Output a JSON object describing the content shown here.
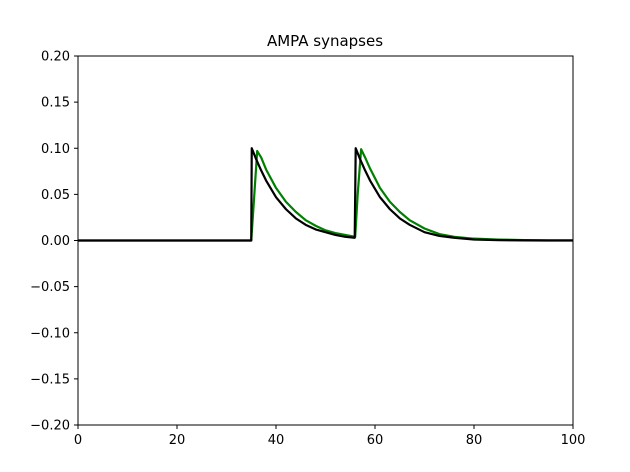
{
  "chart_data": {
    "type": "line",
    "title": "AMPA synapses",
    "xlabel": "",
    "ylabel": "",
    "xlim": [
      0,
      100
    ],
    "ylim": [
      -0.2,
      0.2
    ],
    "xticks": [
      0,
      20,
      40,
      60,
      80,
      100
    ],
    "xtick_labels": [
      "0",
      "20",
      "40",
      "60",
      "80",
      "100"
    ],
    "yticks": [
      -0.2,
      -0.15,
      -0.1,
      -0.05,
      0.0,
      0.05,
      0.1,
      0.15,
      0.2
    ],
    "ytick_labels": [
      "−0.20",
      "−0.15",
      "−0.10",
      "−0.05",
      "0.00",
      "0.05",
      "0.10",
      "0.15",
      "0.20"
    ],
    "grid": false,
    "legend": "none",
    "series": [
      {
        "color": "#008000",
        "x": [
          0,
          35,
          35.5,
          36.2,
          37,
          38,
          40,
          42,
          44,
          46,
          48,
          50,
          52,
          54,
          56,
          56.5,
          57.2,
          58,
          59,
          61,
          63,
          65,
          67,
          70,
          73,
          76,
          80,
          85,
          90,
          95,
          100
        ],
        "y": [
          0.0,
          0.0,
          0.04,
          0.097,
          0.09,
          0.077,
          0.057,
          0.042,
          0.031,
          0.022,
          0.016,
          0.011,
          0.008,
          0.006,
          0.004,
          0.05,
          0.099,
          0.09,
          0.078,
          0.057,
          0.042,
          0.031,
          0.022,
          0.013,
          0.007,
          0.004,
          0.002,
          0.001,
          0.0005,
          0.0002,
          0.0001
        ]
      },
      {
        "color": "#000000",
        "x": [
          0,
          35,
          35.1,
          36,
          37,
          38,
          40,
          42,
          44,
          46,
          48,
          50,
          52,
          54,
          55.9,
          56,
          56.1,
          57,
          58,
          59,
          61,
          63,
          65,
          67,
          70,
          73,
          76,
          80,
          85,
          90,
          95,
          100
        ],
        "y": [
          0.0,
          0.0,
          0.1,
          0.088,
          0.076,
          0.065,
          0.047,
          0.034,
          0.024,
          0.017,
          0.012,
          0.009,
          0.006,
          0.004,
          0.003,
          0.05,
          0.1,
          0.088,
          0.076,
          0.065,
          0.047,
          0.034,
          0.024,
          0.017,
          0.009,
          0.005,
          0.003,
          0.001,
          0.0004,
          0.0001,
          0.0,
          0.0
        ]
      }
    ]
  }
}
